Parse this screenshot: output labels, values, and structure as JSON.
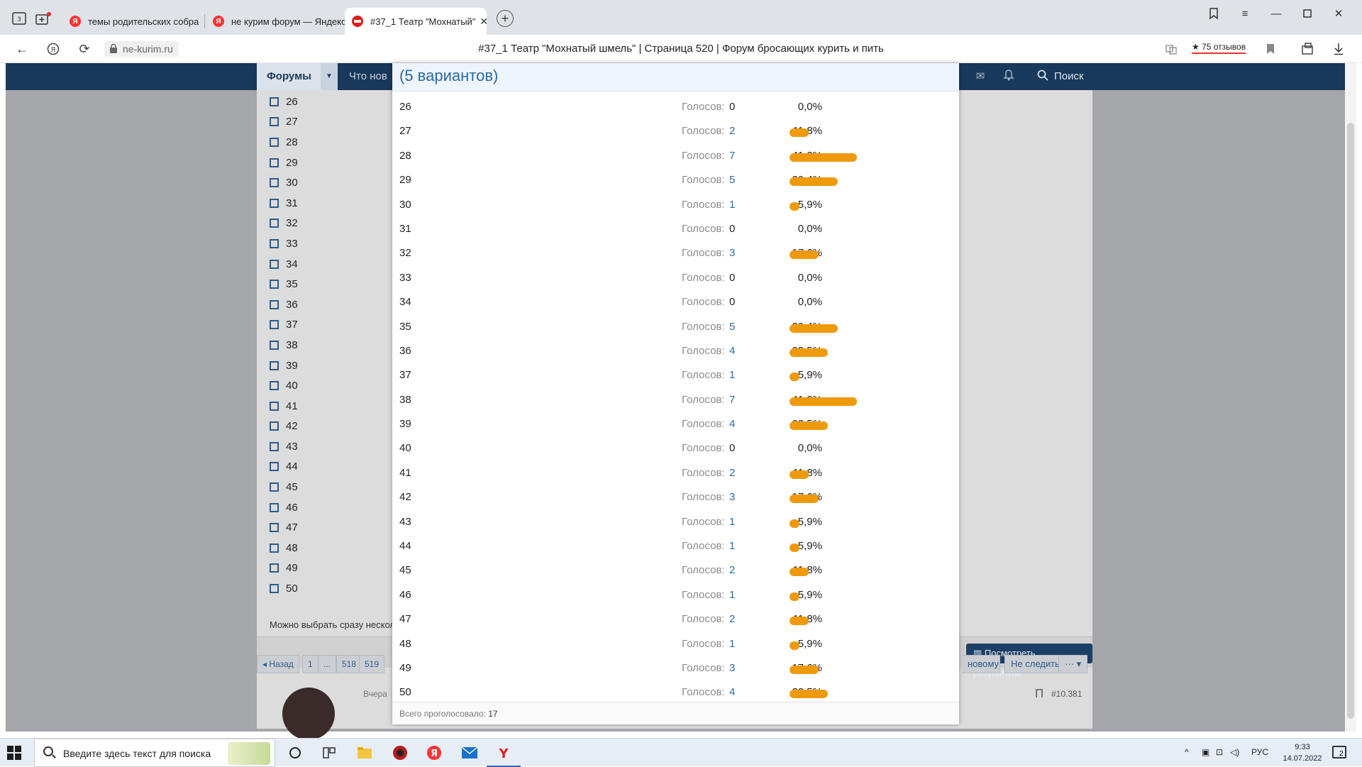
{
  "browser": {
    "tabs": [
      {
        "title": "темы родительских собра",
        "active": false
      },
      {
        "title": "не курим форум — Яндекс",
        "active": false
      },
      {
        "title": "#37_1 Театр \"Мохнатый\"",
        "active": true
      }
    ],
    "url": "ne-kurim.ru",
    "page_title": "#37_1 Театр \"Мохнатый шмель\" | Страница 520 | Форум бросающих курить и пить",
    "reviews": "★ 75 отзывов"
  },
  "forum_nav": {
    "forums": "Форумы",
    "whats_new": "Что нов",
    "search": "Поиск"
  },
  "poll": {
    "options": [
      "26",
      "27",
      "28",
      "29",
      "30",
      "31",
      "32",
      "33",
      "34",
      "35",
      "36",
      "37",
      "38",
      "39",
      "40",
      "41",
      "42",
      "43",
      "44",
      "45",
      "46",
      "47",
      "48",
      "49",
      "50"
    ],
    "note": "Можно выбрать сразу нескол",
    "view_results": "Посмотреть результаты"
  },
  "pager": {
    "prev": "◂ Назад",
    "pages": [
      "1",
      "...",
      "518",
      "519"
    ]
  },
  "thread_actions": {
    "unread": "новому",
    "unwatch": "Не следить",
    "more": "··· ▾"
  },
  "post": {
    "date": "Вчера",
    "number": "#10.381"
  },
  "modal": {
    "title": "(5 вариантов)",
    "votes_label": "Голосов:",
    "total_label": "Всего проголосовало:",
    "total": "17",
    "results": [
      {
        "option": "26",
        "votes": "0",
        "percent": "0,0%",
        "share": 0.0
      },
      {
        "option": "27",
        "votes": "2",
        "percent": "11,8%",
        "share": 11.8
      },
      {
        "option": "28",
        "votes": "7",
        "percent": "41,2%",
        "share": 41.2
      },
      {
        "option": "29",
        "votes": "5",
        "percent": "29,4%",
        "share": 29.4
      },
      {
        "option": "30",
        "votes": "1",
        "percent": "5,9%",
        "share": 5.9
      },
      {
        "option": "31",
        "votes": "0",
        "percent": "0,0%",
        "share": 0.0
      },
      {
        "option": "32",
        "votes": "3",
        "percent": "17,6%",
        "share": 17.6
      },
      {
        "option": "33",
        "votes": "0",
        "percent": "0,0%",
        "share": 0.0
      },
      {
        "option": "34",
        "votes": "0",
        "percent": "0,0%",
        "share": 0.0
      },
      {
        "option": "35",
        "votes": "5",
        "percent": "29,4%",
        "share": 29.4
      },
      {
        "option": "36",
        "votes": "4",
        "percent": "23,5%",
        "share": 23.5
      },
      {
        "option": "37",
        "votes": "1",
        "percent": "5,9%",
        "share": 5.9
      },
      {
        "option": "38",
        "votes": "7",
        "percent": "41,2%",
        "share": 41.2
      },
      {
        "option": "39",
        "votes": "4",
        "percent": "23,5%",
        "share": 23.5
      },
      {
        "option": "40",
        "votes": "0",
        "percent": "0,0%",
        "share": 0.0
      },
      {
        "option": "41",
        "votes": "2",
        "percent": "11,8%",
        "share": 11.8
      },
      {
        "option": "42",
        "votes": "3",
        "percent": "17,6%",
        "share": 17.6
      },
      {
        "option": "43",
        "votes": "1",
        "percent": "5,9%",
        "share": 5.9
      },
      {
        "option": "44",
        "votes": "1",
        "percent": "5,9%",
        "share": 5.9
      },
      {
        "option": "45",
        "votes": "2",
        "percent": "11,8%",
        "share": 11.8
      },
      {
        "option": "46",
        "votes": "1",
        "percent": "5,9%",
        "share": 5.9
      },
      {
        "option": "47",
        "votes": "2",
        "percent": "11,8%",
        "share": 11.8
      },
      {
        "option": "48",
        "votes": "1",
        "percent": "5,9%",
        "share": 5.9
      },
      {
        "option": "49",
        "votes": "3",
        "percent": "17,6%",
        "share": 17.6
      },
      {
        "option": "50",
        "votes": "4",
        "percent": "23,5%",
        "share": 23.5
      }
    ],
    "bar_color": "#ef9a0c"
  },
  "taskbar": {
    "search_placeholder": "Введите здесь текст для поиска",
    "lang": "РУС",
    "time": "9:33",
    "date": "14.07.2022",
    "notifications": "2"
  }
}
